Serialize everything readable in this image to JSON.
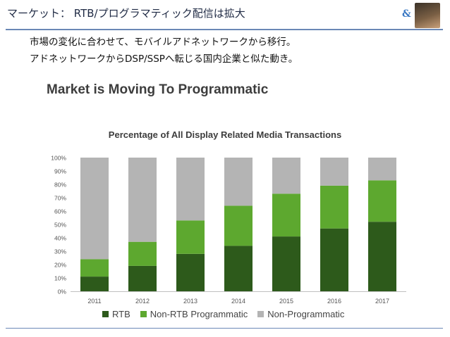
{
  "header": {
    "title": "マーケット： RTB/プログラマティック配信は拡大",
    "brand": "&"
  },
  "bullets": [
    "市場の変化に合わせて、モバイルアドネットワークから移行。",
    "アドネットワークからDSP/SSPへ転じる国内企業と似た動き。"
  ],
  "slide_title": "Market is Moving To Programmatic",
  "colors": {
    "rtb": "#2d5a1b",
    "non_rtb": "#5da82f",
    "non_programmatic": "#b4b4b4",
    "accent": "#6a88b6"
  },
  "chart_data": {
    "type": "bar",
    "stacked": true,
    "title": "Percentage of All Display Related Media Transactions",
    "categories": [
      "2011",
      "2012",
      "2013",
      "2014",
      "2015",
      "2016",
      "2017"
    ],
    "series": [
      {
        "name": "RTB",
        "values": [
          11,
          19,
          28,
          34,
          41,
          47,
          52
        ]
      },
      {
        "name": "Non-RTB Programmatic",
        "values": [
          13,
          18,
          25,
          30,
          32,
          32,
          31
        ]
      },
      {
        "name": "Non-Programmatic",
        "values": [
          76,
          63,
          47,
          36,
          27,
          21,
          17
        ]
      }
    ],
    "ylim": [
      0,
      100
    ],
    "yticks": [
      "0%",
      "10%",
      "20%",
      "30%",
      "40%",
      "50%",
      "60%",
      "70%",
      "80%",
      "90%",
      "100%"
    ],
    "legend_position": "bottom",
    "grid": false
  }
}
